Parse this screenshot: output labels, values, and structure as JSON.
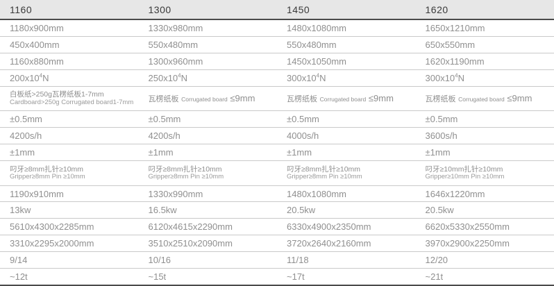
{
  "table": {
    "columns": [
      "1160",
      "1300",
      "1450",
      "1620"
    ],
    "rows": [
      {
        "cells": [
          "1180x900mm",
          "1330x980mm",
          "1480x1080mm",
          "1650x1210mm"
        ]
      },
      {
        "cells": [
          "450x400mm",
          "550x480mm",
          "550x480mm",
          "650x550mm"
        ]
      },
      {
        "cells": [
          "1160x880mm",
          "1300x960mm",
          "1450x1050mm",
          "1620x1190mm"
        ]
      },
      {
        "cells": [
          "200x10^4^N",
          "250x10^4^N",
          "300x10^4^N",
          "300x10^4^N"
        ]
      },
      {
        "cells": [
          {
            "lines": [
              "白板纸>250g瓦楞纸板1-7mm",
              "Cardboard>250g Corrugated board1-7mm"
            ]
          },
          {
            "mix": [
              "瓦楞纸板",
              "Corrugated board",
              "≤9mm"
            ]
          },
          {
            "mix": [
              "瓦楞纸板",
              "Corrugated board",
              "≤9mm"
            ]
          },
          {
            "mix": [
              "瓦楞纸板",
              "Corrugated board",
              "≤9mm"
            ]
          }
        ]
      },
      {
        "cells": [
          "±0.5mm",
          "±0.5mm",
          "±0.5mm",
          "±0.5mm"
        ]
      },
      {
        "cells": [
          "4200s/h",
          "4200s/h",
          "4000s/h",
          "3600s/h"
        ]
      },
      {
        "cells": [
          "±1mm",
          "±1mm",
          "±1mm",
          "±1mm"
        ]
      },
      {
        "cells": [
          {
            "lines": [
              "叼牙≥8mm扎针≥10mm",
              "Gripper≥8mm Pin ≥10mm"
            ]
          },
          {
            "lines": [
              "叼牙≥8mm扎针≥10mm",
              "Gripper≥8mm Pin ≥10mm"
            ]
          },
          {
            "lines": [
              "叼牙≥8mm扎针≥10mm",
              "Gripper≥8mm Pin ≥10mm"
            ]
          },
          {
            "lines": [
              "叼牙≥10mm扎针≥10mm",
              "Gripper≥10mm Pin ≥10mm"
            ]
          }
        ]
      },
      {
        "cells": [
          "1190x910mm",
          "1330x990mm",
          "1480x1080mm",
          "1646x1220mm"
        ]
      },
      {
        "cells": [
          "13kw",
          "16.5kw",
          "20.5kw",
          "20.5kw"
        ]
      },
      {
        "cells": [
          "5610x4300x2285mm",
          "6120x4615x2290mm",
          "6330x4900x2350mm",
          "6620x5330x2550mm"
        ]
      },
      {
        "cells": [
          "3310x2295x2000mm",
          "3510x2510x2090mm",
          "3720x2640x2160mm",
          "3970x2900x2250mm"
        ]
      },
      {
        "cells": [
          "9/14",
          "10/16",
          "11/18",
          "12/20"
        ]
      },
      {
        "cells": [
          "~12t",
          "~15t",
          "~17t",
          "~21t"
        ]
      }
    ],
    "colors": {
      "header_bg": "#e7e7e7",
      "header_text": "#3a3a3a",
      "cell_text": "#8f8f8f",
      "row_border": "#c9c9c9",
      "strong_border": "#4a4a4a"
    }
  }
}
